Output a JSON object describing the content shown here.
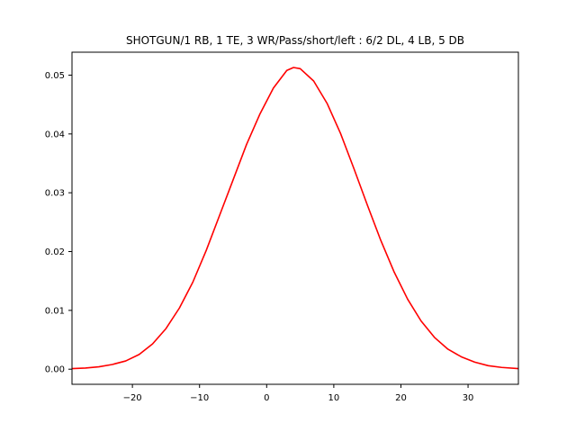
{
  "chart_data": {
    "type": "line",
    "title": "SHOTGUN/1 RB, 1 TE, 3 WR/Pass/short/left : 6/2 DL, 4 LB, 5 DB",
    "xlabel": "",
    "ylabel": "",
    "xlim": [
      -29,
      37.5
    ],
    "ylim": [
      -0.00257,
      0.0539
    ],
    "grid": false,
    "x_ticks": [
      -20,
      -10,
      0,
      10,
      20,
      30
    ],
    "x_tick_labels": [
      "−20",
      "−10",
      "0",
      "10",
      "20",
      "30"
    ],
    "y_ticks": [
      0.0,
      0.01,
      0.02,
      0.03,
      0.04,
      0.05
    ],
    "y_tick_labels": [
      "0.00",
      "0.01",
      "0.02",
      "0.03",
      "0.04",
      "0.05"
    ],
    "series": [
      {
        "color": "#ff0000",
        "x": [
          -29,
          -27,
          -25,
          -23,
          -21,
          -19,
          -17,
          -15,
          -13,
          -11,
          -9,
          -7,
          -5,
          -3,
          -1,
          1,
          3,
          4,
          5,
          7,
          9,
          11,
          13,
          15,
          17,
          19,
          21,
          23,
          25,
          27,
          29,
          31,
          33,
          35,
          37.5
        ],
        "y": [
          0.0001,
          0.0002,
          0.0004,
          0.0008,
          0.0014,
          0.0025,
          0.0043,
          0.0069,
          0.0104,
          0.0148,
          0.0202,
          0.0262,
          0.0322,
          0.0382,
          0.0434,
          0.0478,
          0.0508,
          0.0513,
          0.0511,
          0.049,
          0.0452,
          0.0401,
          0.0341,
          0.0279,
          0.0219,
          0.0165,
          0.0119,
          0.0082,
          0.0054,
          0.0034,
          0.0021,
          0.0012,
          0.0006,
          0.0003,
          0.0001
        ]
      }
    ]
  }
}
